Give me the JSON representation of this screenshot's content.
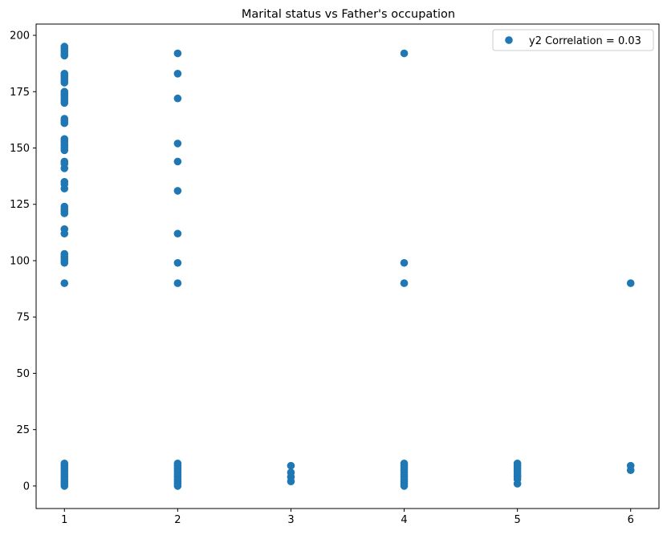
{
  "chart_data": {
    "type": "scatter",
    "title": "Marital status vs Father's occupation",
    "xlabel": "",
    "ylabel": "",
    "xlim": [
      0.75,
      6.25
    ],
    "ylim": [
      -10,
      205
    ],
    "xticks": [
      1,
      2,
      3,
      4,
      5,
      6
    ],
    "yticks": [
      0,
      25,
      50,
      75,
      100,
      125,
      150,
      175,
      200
    ],
    "grid": false,
    "legend_position": "top-right",
    "marker_color": "#1f77b4",
    "series": [
      {
        "name": "y2 Correlation = 0.03",
        "points": [
          [
            1,
            0
          ],
          [
            1,
            1
          ],
          [
            1,
            2
          ],
          [
            1,
            3
          ],
          [
            1,
            4
          ],
          [
            1,
            5
          ],
          [
            1,
            6
          ],
          [
            1,
            7
          ],
          [
            1,
            8
          ],
          [
            1,
            9
          ],
          [
            1,
            10
          ],
          [
            1,
            90
          ],
          [
            1,
            99
          ],
          [
            1,
            100
          ],
          [
            1,
            101
          ],
          [
            1,
            102
          ],
          [
            1,
            103
          ],
          [
            1,
            112
          ],
          [
            1,
            114
          ],
          [
            1,
            121
          ],
          [
            1,
            122
          ],
          [
            1,
            123
          ],
          [
            1,
            124
          ],
          [
            1,
            132
          ],
          [
            1,
            134
          ],
          [
            1,
            135
          ],
          [
            1,
            141
          ],
          [
            1,
            143
          ],
          [
            1,
            144
          ],
          [
            1,
            149
          ],
          [
            1,
            150
          ],
          [
            1,
            151
          ],
          [
            1,
            152
          ],
          [
            1,
            153
          ],
          [
            1,
            154
          ],
          [
            1,
            161
          ],
          [
            1,
            162
          ],
          [
            1,
            163
          ],
          [
            1,
            170
          ],
          [
            1,
            171
          ],
          [
            1,
            172
          ],
          [
            1,
            173
          ],
          [
            1,
            174
          ],
          [
            1,
            175
          ],
          [
            1,
            179
          ],
          [
            1,
            180
          ],
          [
            1,
            181
          ],
          [
            1,
            182
          ],
          [
            1,
            183
          ],
          [
            1,
            191
          ],
          [
            1,
            192
          ],
          [
            1,
            193
          ],
          [
            1,
            194
          ],
          [
            1,
            195
          ],
          [
            2,
            0
          ],
          [
            2,
            1
          ],
          [
            2,
            2
          ],
          [
            2,
            3
          ],
          [
            2,
            4
          ],
          [
            2,
            5
          ],
          [
            2,
            6
          ],
          [
            2,
            7
          ],
          [
            2,
            8
          ],
          [
            2,
            9
          ],
          [
            2,
            10
          ],
          [
            2,
            90
          ],
          [
            2,
            99
          ],
          [
            2,
            112
          ],
          [
            2,
            131
          ],
          [
            2,
            144
          ],
          [
            2,
            152
          ],
          [
            2,
            172
          ],
          [
            2,
            183
          ],
          [
            2,
            192
          ],
          [
            3,
            2
          ],
          [
            3,
            4
          ],
          [
            3,
            6
          ],
          [
            3,
            9
          ],
          [
            4,
            0
          ],
          [
            4,
            1
          ],
          [
            4,
            2
          ],
          [
            4,
            3
          ],
          [
            4,
            4
          ],
          [
            4,
            5
          ],
          [
            4,
            6
          ],
          [
            4,
            7
          ],
          [
            4,
            8
          ],
          [
            4,
            9
          ],
          [
            4,
            10
          ],
          [
            4,
            90
          ],
          [
            4,
            99
          ],
          [
            4,
            192
          ],
          [
            5,
            1
          ],
          [
            5,
            3
          ],
          [
            5,
            4
          ],
          [
            5,
            5
          ],
          [
            5,
            6
          ],
          [
            5,
            7
          ],
          [
            5,
            8
          ],
          [
            5,
            9
          ],
          [
            5,
            10
          ],
          [
            6,
            7
          ],
          [
            6,
            9
          ],
          [
            6,
            90
          ]
        ]
      }
    ]
  }
}
